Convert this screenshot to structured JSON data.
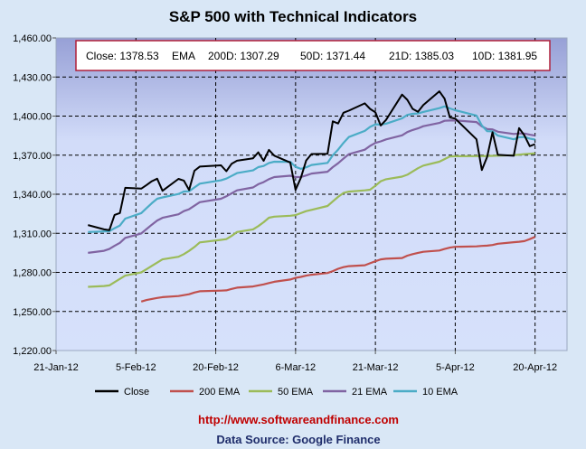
{
  "chart_data": {
    "type": "line",
    "title": "S&P 500 with Technical Indicators",
    "xlabel": "",
    "ylabel": "",
    "ylim": [
      1220,
      1460
    ],
    "yticks": [
      "1,220.00",
      "1,250.00",
      "1,280.00",
      "1,310.00",
      "1,340.00",
      "1,370.00",
      "1,400.00",
      "1,430.00",
      "1,460.00"
    ],
    "ytick_values": [
      1220,
      1250,
      1280,
      1310,
      1340,
      1370,
      1400,
      1430,
      1460
    ],
    "xlim": [
      "2012-01-21",
      "2012-04-26"
    ],
    "xticks": [
      {
        "date": "2012-01-21",
        "label": "21-Jan-12"
      },
      {
        "date": "2012-02-05",
        "label": "5-Feb-12"
      },
      {
        "date": "2012-02-20",
        "label": "20-Feb-12"
      },
      {
        "date": "2012-03-06",
        "label": "6-Mar-12"
      },
      {
        "date": "2012-03-21",
        "label": "21-Mar-12"
      },
      {
        "date": "2012-04-05",
        "label": "5-Apr-12"
      },
      {
        "date": "2012-04-20",
        "label": "20-Apr-12"
      }
    ],
    "grid": true,
    "legend_position": "bottom",
    "x": [
      "2012-01-27",
      "2012-01-30",
      "2012-01-31",
      "2012-02-01",
      "2012-02-02",
      "2012-02-03",
      "2012-02-06",
      "2012-02-07",
      "2012-02-08",
      "2012-02-09",
      "2012-02-10",
      "2012-02-13",
      "2012-02-14",
      "2012-02-15",
      "2012-02-16",
      "2012-02-17",
      "2012-02-21",
      "2012-02-22",
      "2012-02-23",
      "2012-02-24",
      "2012-02-27",
      "2012-02-28",
      "2012-02-29",
      "2012-03-01",
      "2012-03-02",
      "2012-03-05",
      "2012-03-06",
      "2012-03-07",
      "2012-03-08",
      "2012-03-09",
      "2012-03-12",
      "2012-03-13",
      "2012-03-14",
      "2012-03-15",
      "2012-03-16",
      "2012-03-19",
      "2012-03-20",
      "2012-03-21",
      "2012-03-22",
      "2012-03-23",
      "2012-03-26",
      "2012-03-27",
      "2012-03-28",
      "2012-03-29",
      "2012-03-30",
      "2012-04-02",
      "2012-04-03",
      "2012-04-04",
      "2012-04-05",
      "2012-04-09",
      "2012-04-10",
      "2012-04-11",
      "2012-04-12",
      "2012-04-13",
      "2012-04-16",
      "2012-04-17",
      "2012-04-18",
      "2012-04-19",
      "2012-04-20"
    ],
    "series": [
      {
        "name": "Close",
        "color": "#000000",
        "values": [
          1316.33,
          1313.01,
          1312.41,
          1324.09,
          1325.54,
          1344.9,
          1344.33,
          1347.05,
          1349.96,
          1351.95,
          1342.64,
          1351.77,
          1350.5,
          1343.23,
          1358.04,
          1361.23,
          1362.21,
          1357.66,
          1363.46,
          1365.74,
          1367.59,
          1372.18,
          1365.68,
          1374.09,
          1369.63,
          1364.33,
          1343.36,
          1352.63,
          1365.91,
          1370.87,
          1371.09,
          1395.95,
          1394.28,
          1402.6,
          1404.17,
          1409.75,
          1405.52,
          1402.89,
          1392.78,
          1397.11,
          1416.51,
          1412.52,
          1405.54,
          1403.28,
          1408.47,
          1419.04,
          1413.38,
          1398.96,
          1398.08,
          1382.2,
          1358.59,
          1368.71,
          1387.57,
          1370.26,
          1369.57,
          1390.78,
          1385.14,
          1376.92,
          1378.53
        ]
      },
      {
        "name": "200 EMA",
        "color": "#c0504d",
        "values": [
          null,
          null,
          null,
          null,
          null,
          null,
          1257.6,
          1258.8,
          1259.6,
          1260.4,
          1261.0,
          1261.8,
          1262.5,
          1263.2,
          1264.5,
          1265.5,
          1266.0,
          1266.2,
          1267.3,
          1268.3,
          1269.2,
          1270.0,
          1270.8,
          1271.8,
          1272.8,
          1274.5,
          1275.8,
          1276.5,
          1277.5,
          1278.2,
          1279.5,
          1281.0,
          1282.8,
          1284.0,
          1284.8,
          1285.5,
          1287.0,
          1288.5,
          1290.0,
          1290.5,
          1291.0,
          1292.8,
          1294.0,
          1295.0,
          1295.8,
          1296.8,
          1298.0,
          1299.0,
          1299.6,
          1300.0,
          1300.3,
          1300.5,
          1301.0,
          1302.0,
          1303.2,
          1303.5,
          1304.0,
          1305.5,
          1307.29
        ]
      },
      {
        "name": "50 EMA",
        "color": "#9bbb59",
        "values": [
          1268.9,
          1269.5,
          1270.0,
          1272.5,
          1275.0,
          1277.5,
          1280.0,
          1282.5,
          1285.0,
          1287.5,
          1290.0,
          1292.0,
          1294.0,
          1296.5,
          1299.5,
          1303.0,
          1305.0,
          1305.5,
          1308.0,
          1311.0,
          1313.0,
          1315.5,
          1318.5,
          1322.0,
          1322.8,
          1323.5,
          1324.0,
          1325.5,
          1327.0,
          1328.0,
          1331.0,
          1334.5,
          1338.0,
          1341.0,
          1342.0,
          1343.0,
          1343.5,
          1346.5,
          1350.0,
          1351.5,
          1353.5,
          1355.0,
          1357.5,
          1360.0,
          1362.0,
          1365.0,
          1367.0,
          1369.0,
          1369.2,
          1369.3,
          1369.3,
          1369.4,
          1369.5,
          1369.6,
          1370.0,
          1370.4,
          1370.8,
          1371.1,
          1371.44
        ]
      },
      {
        "name": "21 EMA",
        "color": "#8064a2",
        "values": [
          1295.0,
          1296.6,
          1298.0,
          1300.4,
          1302.7,
          1306.5,
          1309.9,
          1313.3,
          1316.6,
          1319.8,
          1321.9,
          1324.6,
          1327.0,
          1328.5,
          1331.2,
          1333.9,
          1336.5,
          1338.4,
          1340.7,
          1343.0,
          1345.2,
          1347.7,
          1349.3,
          1351.6,
          1353.2,
          1354.2,
          1353.2,
          1353.2,
          1354.4,
          1355.9,
          1357.3,
          1360.8,
          1363.8,
          1367.3,
          1370.7,
          1374.2,
          1377.1,
          1379.4,
          1380.6,
          1382.1,
          1385.2,
          1387.7,
          1389.3,
          1390.6,
          1392.2,
          1394.7,
          1396.4,
          1396.6,
          1396.7,
          1395.4,
          1392.1,
          1390.0,
          1389.8,
          1388.0,
          1386.3,
          1386.7,
          1386.6,
          1385.7,
          1385.03
        ]
      },
      {
        "name": "10 EMA",
        "color": "#4bacc6",
        "values": [
          1311.0,
          1311.4,
          1311.6,
          1313.9,
          1316.0,
          1321.3,
          1325.5,
          1329.4,
          1333.1,
          1336.5,
          1337.6,
          1340.2,
          1342.1,
          1342.3,
          1345.2,
          1348.1,
          1350.7,
          1352.0,
          1354.1,
          1356.2,
          1358.3,
          1360.8,
          1361.7,
          1364.0,
          1365.0,
          1364.9,
          1361.0,
          1359.5,
          1360.7,
          1362.5,
          1364.1,
          1369.9,
          1374.3,
          1379.4,
          1383.9,
          1388.6,
          1391.7,
          1393.7,
          1393.5,
          1394.2,
          1398.3,
          1400.9,
          1401.7,
          1402.0,
          1403.2,
          1406.1,
          1407.4,
          1405.9,
          1404.5,
          1400.4,
          1392.8,
          1388.4,
          1388.3,
          1385.0,
          1382.2,
          1383.8,
          1384.0,
          1382.7,
          1381.95
        ]
      }
    ],
    "annotation_box": {
      "close": "Close: 1378.53",
      "ema": "EMA",
      "d200": "200D: 1307.29",
      "d50": "50D: 1371.44",
      "d21": "21D: 1385.03",
      "d10": "10D: 1381.95"
    },
    "footer": {
      "url": "http://www.softwareandfinance.com",
      "source": "Data Source: Google Finance"
    }
  }
}
